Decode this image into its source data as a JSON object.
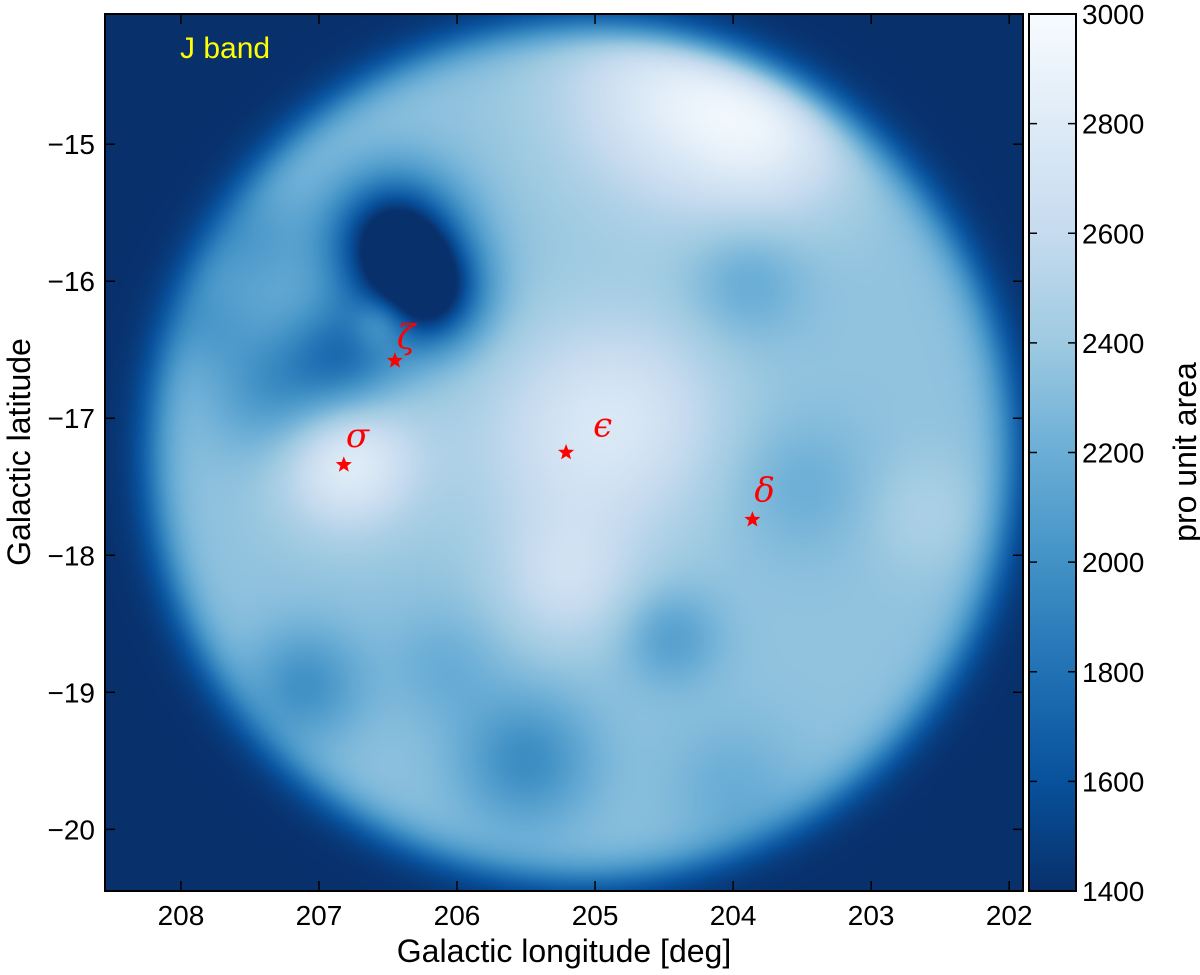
{
  "chart_data": {
    "type": "heatmap",
    "title": "",
    "panel_label": "J band",
    "panel_label_color": "#ffff00",
    "xlabel": "Galactic longitude [deg]",
    "ylabel": "Galactic latitude",
    "xlim": [
      208.55,
      201.9
    ],
    "ylim": [
      -20.45,
      -14.05
    ],
    "x_ticks": [
      208,
      207,
      206,
      205,
      204,
      203,
      202
    ],
    "x_tick_labels": [
      "208",
      "207",
      "206",
      "205",
      "204",
      "203",
      "202"
    ],
    "y_ticks": [
      -15,
      -16,
      -17,
      -18,
      -19,
      -20
    ],
    "y_tick_labels": [
      "−15",
      "−16",
      "−17",
      "−18",
      "−19",
      "−20"
    ],
    "colorbar": {
      "label": "pro unit area",
      "range": [
        1400,
        3000
      ],
      "ticks": [
        1400,
        1600,
        1800,
        2000,
        2200,
        2400,
        2600,
        2800,
        3000
      ],
      "tick_labels": [
        "1400",
        "1600",
        "1800",
        "2000",
        "2200",
        "2400",
        "2600",
        "2800",
        "3000"
      ],
      "colors": [
        "#08306b",
        "#08519c",
        "#2171b5",
        "#4292c6",
        "#6baed6",
        "#9ecae1",
        "#c6dbef",
        "#deebf7",
        "#f7fbff"
      ]
    },
    "field": {
      "center_l": 205.1,
      "center_b": -17.25,
      "radius_deg": 3.1,
      "background_value": 1400,
      "base_value": 2350
    },
    "features": [
      {
        "l": 206.45,
        "b": -15.7,
        "sigma": 0.33,
        "value": -1100
      },
      {
        "l": 206.2,
        "b": -16.1,
        "sigma": 0.28,
        "value": -900
      },
      {
        "l": 206.8,
        "b": -16.55,
        "sigma": 0.3,
        "value": -500
      },
      {
        "l": 207.3,
        "b": -16.8,
        "sigma": 0.35,
        "value": -350
      },
      {
        "l": 206.8,
        "b": -17.3,
        "sigma": 0.35,
        "value": 500
      },
      {
        "l": 206.55,
        "b": -16.3,
        "sigma": 0.15,
        "value": 350
      },
      {
        "l": 204.4,
        "b": -14.6,
        "sigma": 0.6,
        "value": 450
      },
      {
        "l": 203.7,
        "b": -14.9,
        "sigma": 0.45,
        "value": 350
      },
      {
        "l": 205.1,
        "b": -17.2,
        "sigma": 0.6,
        "value": 280
      },
      {
        "l": 205.2,
        "b": -18.2,
        "sigma": 0.35,
        "value": 250
      },
      {
        "l": 204.7,
        "b": -16.9,
        "sigma": 0.5,
        "value": 180
      },
      {
        "l": 205.5,
        "b": -19.5,
        "sigma": 0.35,
        "value": -380
      },
      {
        "l": 207.1,
        "b": -18.95,
        "sigma": 0.3,
        "value": -350
      },
      {
        "l": 204.45,
        "b": -18.6,
        "sigma": 0.25,
        "value": -260
      },
      {
        "l": 203.9,
        "b": -16.0,
        "sigma": 0.3,
        "value": -200
      },
      {
        "l": 203.5,
        "b": -17.5,
        "sigma": 0.35,
        "value": -150
      },
      {
        "l": 206.1,
        "b": -18.8,
        "sigma": 0.3,
        "value": -150
      },
      {
        "l": 207.5,
        "b": -15.7,
        "sigma": 0.3,
        "value": -250
      },
      {
        "l": 207.8,
        "b": -16.3,
        "sigma": 0.25,
        "value": -200
      },
      {
        "l": 204.0,
        "b": -19.7,
        "sigma": 0.35,
        "value": -150
      },
      {
        "l": 202.6,
        "b": -17.7,
        "sigma": 0.3,
        "value": 120
      }
    ],
    "stars": [
      {
        "name": "zeta",
        "label": "ζ",
        "l": 206.45,
        "b": -16.58
      },
      {
        "name": "sigma",
        "label": "σ",
        "l": 206.82,
        "b": -17.34
      },
      {
        "name": "epsilon",
        "label": "ϵ",
        "l": 205.21,
        "b": -17.25
      },
      {
        "name": "delta",
        "label": "δ",
        "l": 203.86,
        "b": -17.74
      }
    ],
    "star_color": "#ff0000"
  }
}
